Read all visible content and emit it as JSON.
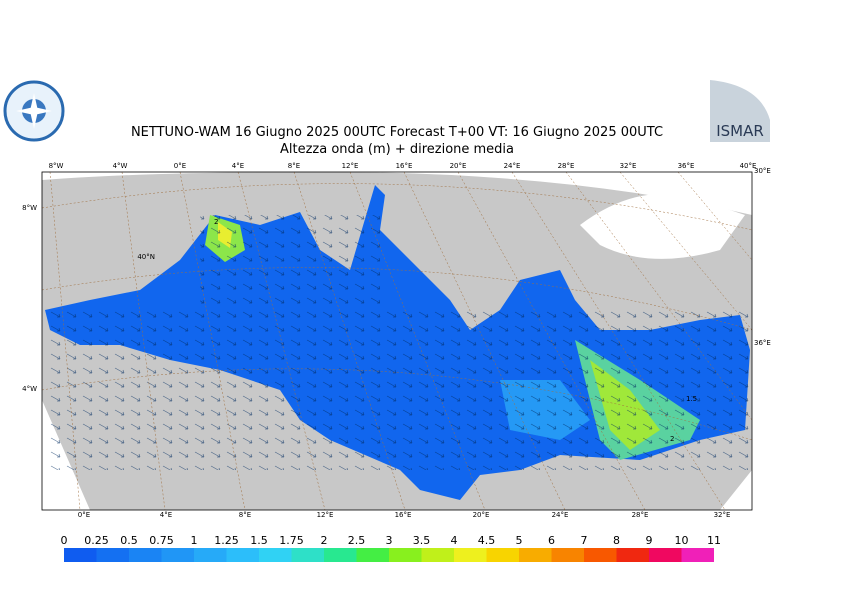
{
  "header": {
    "title": "NETTUNO-WAM  16   Giugno  2025 00UTC Forecast T+00 VT: 16   Giugno  2025 00UTC",
    "subtitle": "Altezza onda (m) + direzione media",
    "logo_right": "ISMAR"
  },
  "map": {
    "top_labels": [
      "8°W",
      "4°W",
      "0°E",
      "4°E",
      "8°E",
      "12°E",
      "16°E",
      "20°E",
      "24°E",
      "28°E",
      "32°E",
      "36°E",
      "40°E"
    ],
    "bottom_labels": [
      "0°E",
      "4°E",
      "8°E",
      "12°E",
      "16°E",
      "20°E",
      "24°E",
      "28°E",
      "32°E"
    ],
    "left_labels": [
      "8°W",
      "40°N",
      "4°W"
    ],
    "right_labels": [
      "30°E",
      "36°E"
    ],
    "contour_labels": [
      "2",
      "1.5",
      "2"
    ]
  },
  "colorbar": {
    "levels": [
      0,
      0.25,
      0.5,
      0.75,
      1,
      1.25,
      1.5,
      1.75,
      2,
      2.5,
      3,
      3.5,
      4,
      4.5,
      5,
      6,
      7,
      8,
      9,
      10,
      11
    ],
    "colors": [
      "#0f5cf0",
      "#1470f2",
      "#1a84f4",
      "#2096f6",
      "#26aaf8",
      "#2cbefa",
      "#30d2f4",
      "#2ee0c8",
      "#28e890",
      "#44ee44",
      "#88f01e",
      "#c0f01a",
      "#eef01e",
      "#f8d400",
      "#f8ac00",
      "#f88400",
      "#f85800",
      "#f02810",
      "#f00860",
      "#f020b8"
    ]
  }
}
